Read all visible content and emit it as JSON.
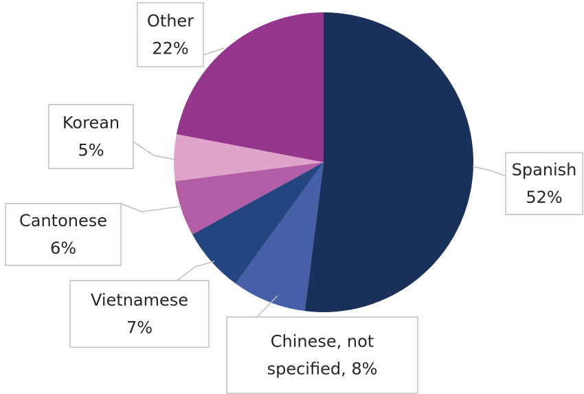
{
  "chart_data": {
    "type": "pie",
    "title": "",
    "start": "12 o'clock, clockwise",
    "slices": [
      {
        "name": "Spanish",
        "value": 52,
        "color": "#19305b",
        "label_lines": [
          "Spanish",
          "52%"
        ]
      },
      {
        "name": "Chinese, not specified",
        "value": 8,
        "color": "#4660a8",
        "label_lines": [
          "Chinese, not",
          "specified, 8%"
        ]
      },
      {
        "name": "Vietnamese",
        "value": 7,
        "color": "#234681",
        "label_lines": [
          "Vietnamese",
          "7%"
        ]
      },
      {
        "name": "Cantonese",
        "value": 6,
        "color": "#b45da7",
        "label_lines": [
          "Cantonese",
          "6%"
        ]
      },
      {
        "name": "Korean",
        "value": 5,
        "color": "#e0a4ca",
        "label_lines": [
          "Korean",
          "5%"
        ]
      },
      {
        "name": "Other",
        "value": 22,
        "color": "#95368d",
        "label_lines": [
          "Other",
          "22%"
        ]
      }
    ]
  }
}
